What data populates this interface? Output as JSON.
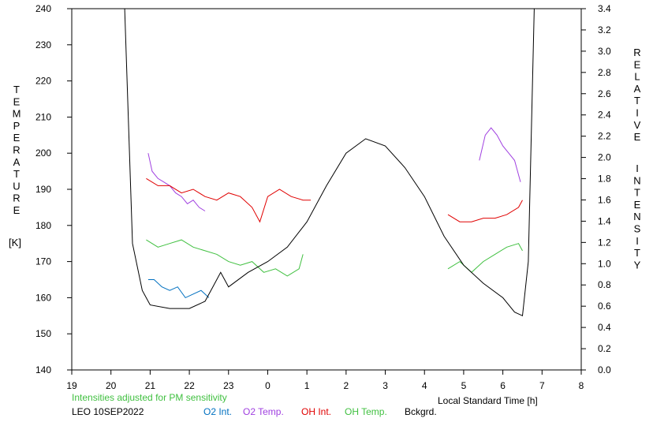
{
  "chart_data": {
    "type": "line",
    "x_axis": {
      "label": "Local Standard Time [h]",
      "ticks": [
        "19",
        "20",
        "21",
        "22",
        "23",
        "0",
        "1",
        "2",
        "3",
        "4",
        "5",
        "6",
        "7",
        "8"
      ],
      "range_hours": [
        19,
        32
      ]
    },
    "y_left": {
      "label_letters": [
        "T",
        "E",
        "M",
        "P",
        "E",
        "R",
        "A",
        "T",
        "U",
        "R",
        "E"
      ],
      "unit": "[K]",
      "range": [
        140,
        240
      ],
      "ticks": [
        140,
        150,
        160,
        170,
        180,
        190,
        200,
        210,
        220,
        230,
        240
      ]
    },
    "y_right": {
      "label_letters_1": [
        "R",
        "E",
        "L",
        "A",
        "T",
        "I",
        "V",
        "E"
      ],
      "label_letters_2": [
        "I",
        "N",
        "T",
        "E",
        "N",
        "S",
        "I",
        "T",
        "Y"
      ],
      "range": [
        0.0,
        3.4
      ],
      "ticks": [
        "0.0",
        "0.2",
        "0.4",
        "0.6",
        "0.8",
        "1.0",
        "1.2",
        "1.4",
        "1.6",
        "1.8",
        "2.0",
        "2.2",
        "2.4",
        "2.6",
        "2.8",
        "3.0",
        "3.2",
        "3.4"
      ]
    },
    "grid": false,
    "series": [
      {
        "name": "O2 Int.",
        "color": "#0070c0",
        "axis": "left",
        "x": [
          20.95,
          21.1,
          21.3,
          21.5,
          21.7,
          21.9,
          22.1,
          22.3,
          22.5
        ],
        "y": [
          165,
          165,
          163,
          162,
          163,
          160,
          161,
          162,
          160
        ]
      },
      {
        "name": "O2 Temp.",
        "color": "#a040e0",
        "axis": "left",
        "x": [
          20.95,
          21.05,
          21.2,
          21.35,
          21.5,
          21.65,
          21.8,
          21.95,
          22.1,
          22.25,
          22.4,
          29.4,
          29.55,
          29.7,
          29.85,
          30.0,
          30.15,
          30.3,
          30.45
        ],
        "y": [
          200,
          195,
          193,
          192,
          191,
          189,
          188,
          186,
          187,
          185,
          184,
          198,
          205,
          207,
          205,
          202,
          200,
          198,
          192
        ]
      },
      {
        "name": "OH Int.",
        "color": "#e00000",
        "axis": "left",
        "x": [
          20.9,
          21.2,
          21.5,
          21.8,
          22.1,
          22.4,
          22.7,
          23.0,
          23.3,
          23.6,
          23.8,
          24.0,
          24.3,
          24.6,
          24.9,
          25.1,
          28.6,
          28.9,
          29.2,
          29.5,
          29.8,
          30.1,
          30.4,
          30.5
        ],
        "y": [
          193,
          191,
          191,
          189,
          190,
          188,
          187,
          189,
          188,
          185,
          181,
          188,
          190,
          188,
          187,
          187,
          183,
          181,
          181,
          182,
          182,
          183,
          185,
          187
        ]
      },
      {
        "name": "OH Temp.",
        "color": "#40c040",
        "axis": "left",
        "x": [
          20.9,
          21.2,
          21.5,
          21.8,
          22.1,
          22.4,
          22.7,
          23.0,
          23.3,
          23.6,
          23.9,
          24.2,
          24.5,
          24.8,
          24.9,
          28.6,
          28.9,
          29.2,
          29.5,
          29.8,
          30.1,
          30.4,
          30.5
        ],
        "y": [
          176,
          174,
          175,
          176,
          174,
          173,
          172,
          170,
          169,
          170,
          167,
          168,
          166,
          168,
          172,
          168,
          170,
          167,
          170,
          172,
          174,
          175,
          173
        ]
      },
      {
        "name": "Bckgrd.",
        "color": "#000000",
        "axis": "left",
        "x": [
          20.35,
          20.55,
          20.8,
          21.0,
          21.5,
          22.0,
          22.4,
          22.6,
          22.8,
          23.0,
          23.5,
          24.0,
          24.5,
          25.0,
          25.5,
          26.0,
          26.5,
          27.0,
          27.5,
          28.0,
          28.5,
          29.0,
          29.5,
          30.0,
          30.3,
          30.5,
          30.65,
          30.8
        ],
        "y": [
          240,
          175,
          162,
          158,
          157,
          157,
          159,
          163,
          167,
          163,
          167,
          170,
          174,
          181,
          191,
          200,
          204,
          202,
          196,
          188,
          177,
          169,
          164,
          160,
          156,
          155,
          170,
          240
        ]
      }
    ]
  },
  "notes": {
    "adjusted": "Intensities adjusted for PM sensitivity",
    "station_date": "LEO 10SEP2022"
  },
  "legend": [
    {
      "label": "O2 Int.",
      "color": "#0070c0"
    },
    {
      "label": "O2 Temp.",
      "color": "#a040e0"
    },
    {
      "label": "OH Int.",
      "color": "#e00000"
    },
    {
      "label": "OH Temp.",
      "color": "#40c040"
    },
    {
      "label": "Bckgrd.",
      "color": "#000000"
    }
  ]
}
